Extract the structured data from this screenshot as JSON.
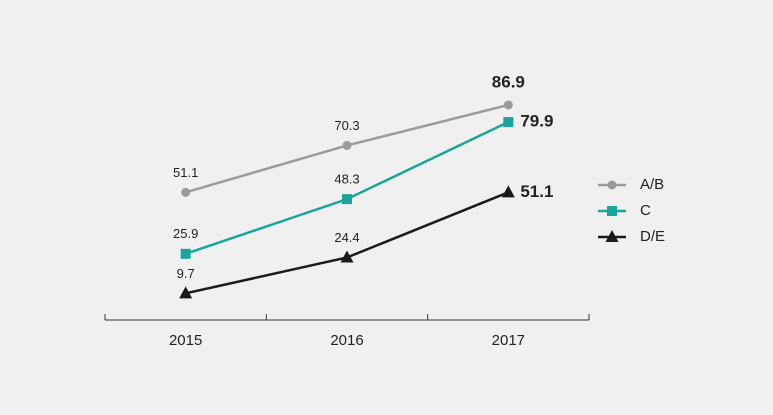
{
  "chart_data": {
    "type": "line",
    "categories": [
      "2015",
      "2016",
      "2017"
    ],
    "series": [
      {
        "name": "A/B",
        "color": "#9b9b9b",
        "marker": "circle",
        "values": [
          51.1,
          70.3,
          86.9
        ]
      },
      {
        "name": "C",
        "color": "#1aa59a",
        "marker": "square",
        "values": [
          25.9,
          48.3,
          79.9
        ]
      },
      {
        "name": "D/E",
        "color": "#1a1a1a",
        "marker": "triangle",
        "values": [
          9.7,
          24.4,
          51.1
        ]
      }
    ],
    "ylim": [
      0,
      100
    ]
  }
}
